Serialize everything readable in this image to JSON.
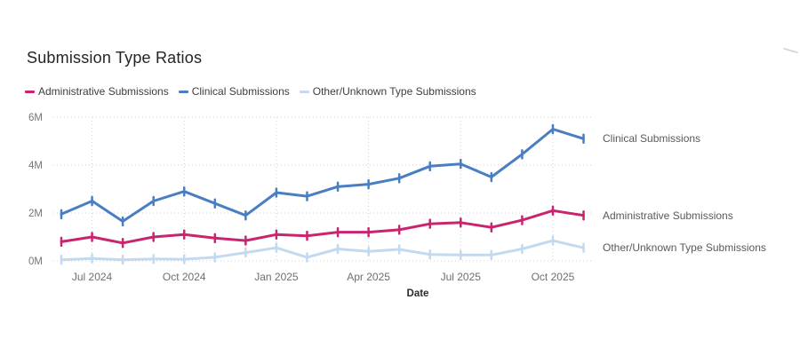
{
  "page": {
    "background": "#ffffff"
  },
  "chart": {
    "title": "Submission Type Ratios",
    "legend": [
      {
        "label": "Administrative Submissions",
        "color": "#c9256e"
      },
      {
        "label": "Clinical Submissions",
        "color": "#4a7ec2"
      },
      {
        "label": "Other/Unknown Type Submissions",
        "color": "#c3d9f0"
      }
    ]
  },
  "chart_data": {
    "type": "line",
    "title": "Submission Type Ratios",
    "xlabel": "Date",
    "ylabel": "",
    "x": [
      "Jun 2024",
      "Jul 2024",
      "Aug 2024",
      "Sep 2024",
      "Oct 2024",
      "Nov 2024",
      "Dec 2024",
      "Jan 2025",
      "Feb 2025",
      "Mar 2025",
      "Apr 2025",
      "May 2025",
      "Jun 2025",
      "Jul 2025",
      "Aug 2025",
      "Sep 2025",
      "Oct 2025",
      "Nov 2025"
    ],
    "x_tick_labels": [
      "Jul 2024",
      "Oct 2024",
      "Jan 2025",
      "Apr 2025",
      "Jul 2025",
      "Oct 2025"
    ],
    "y_tick_labels": [
      "0M",
      "2M",
      "4M",
      "6M"
    ],
    "y_tick_values": [
      0,
      2,
      4,
      6
    ],
    "ylim": [
      0,
      6
    ],
    "unit": "M",
    "grid": "dotted",
    "legend_position": "top",
    "marker": "vertical-tick",
    "end_labels": true,
    "series": [
      {
        "name": "Administrative Submissions",
        "color": "#c9256e",
        "values": [
          0.8,
          1.0,
          0.75,
          1.0,
          1.1,
          0.95,
          0.85,
          1.1,
          1.05,
          1.2,
          1.2,
          1.3,
          1.55,
          1.6,
          1.4,
          1.7,
          2.1,
          1.9
        ]
      },
      {
        "name": "Clinical Submissions",
        "color": "#4a7ec2",
        "values": [
          1.95,
          2.5,
          1.65,
          2.5,
          2.9,
          2.4,
          1.9,
          2.85,
          2.7,
          3.1,
          3.2,
          3.45,
          3.95,
          4.05,
          3.5,
          4.45,
          5.5,
          5.1
        ]
      },
      {
        "name": "Other/Unknown Type Submissions",
        "color": "#c3d9f0",
        "values": [
          0.05,
          0.1,
          0.05,
          0.08,
          0.07,
          0.15,
          0.35,
          0.55,
          0.15,
          0.5,
          0.4,
          0.48,
          0.27,
          0.25,
          0.25,
          0.5,
          0.85,
          0.55
        ]
      }
    ]
  }
}
